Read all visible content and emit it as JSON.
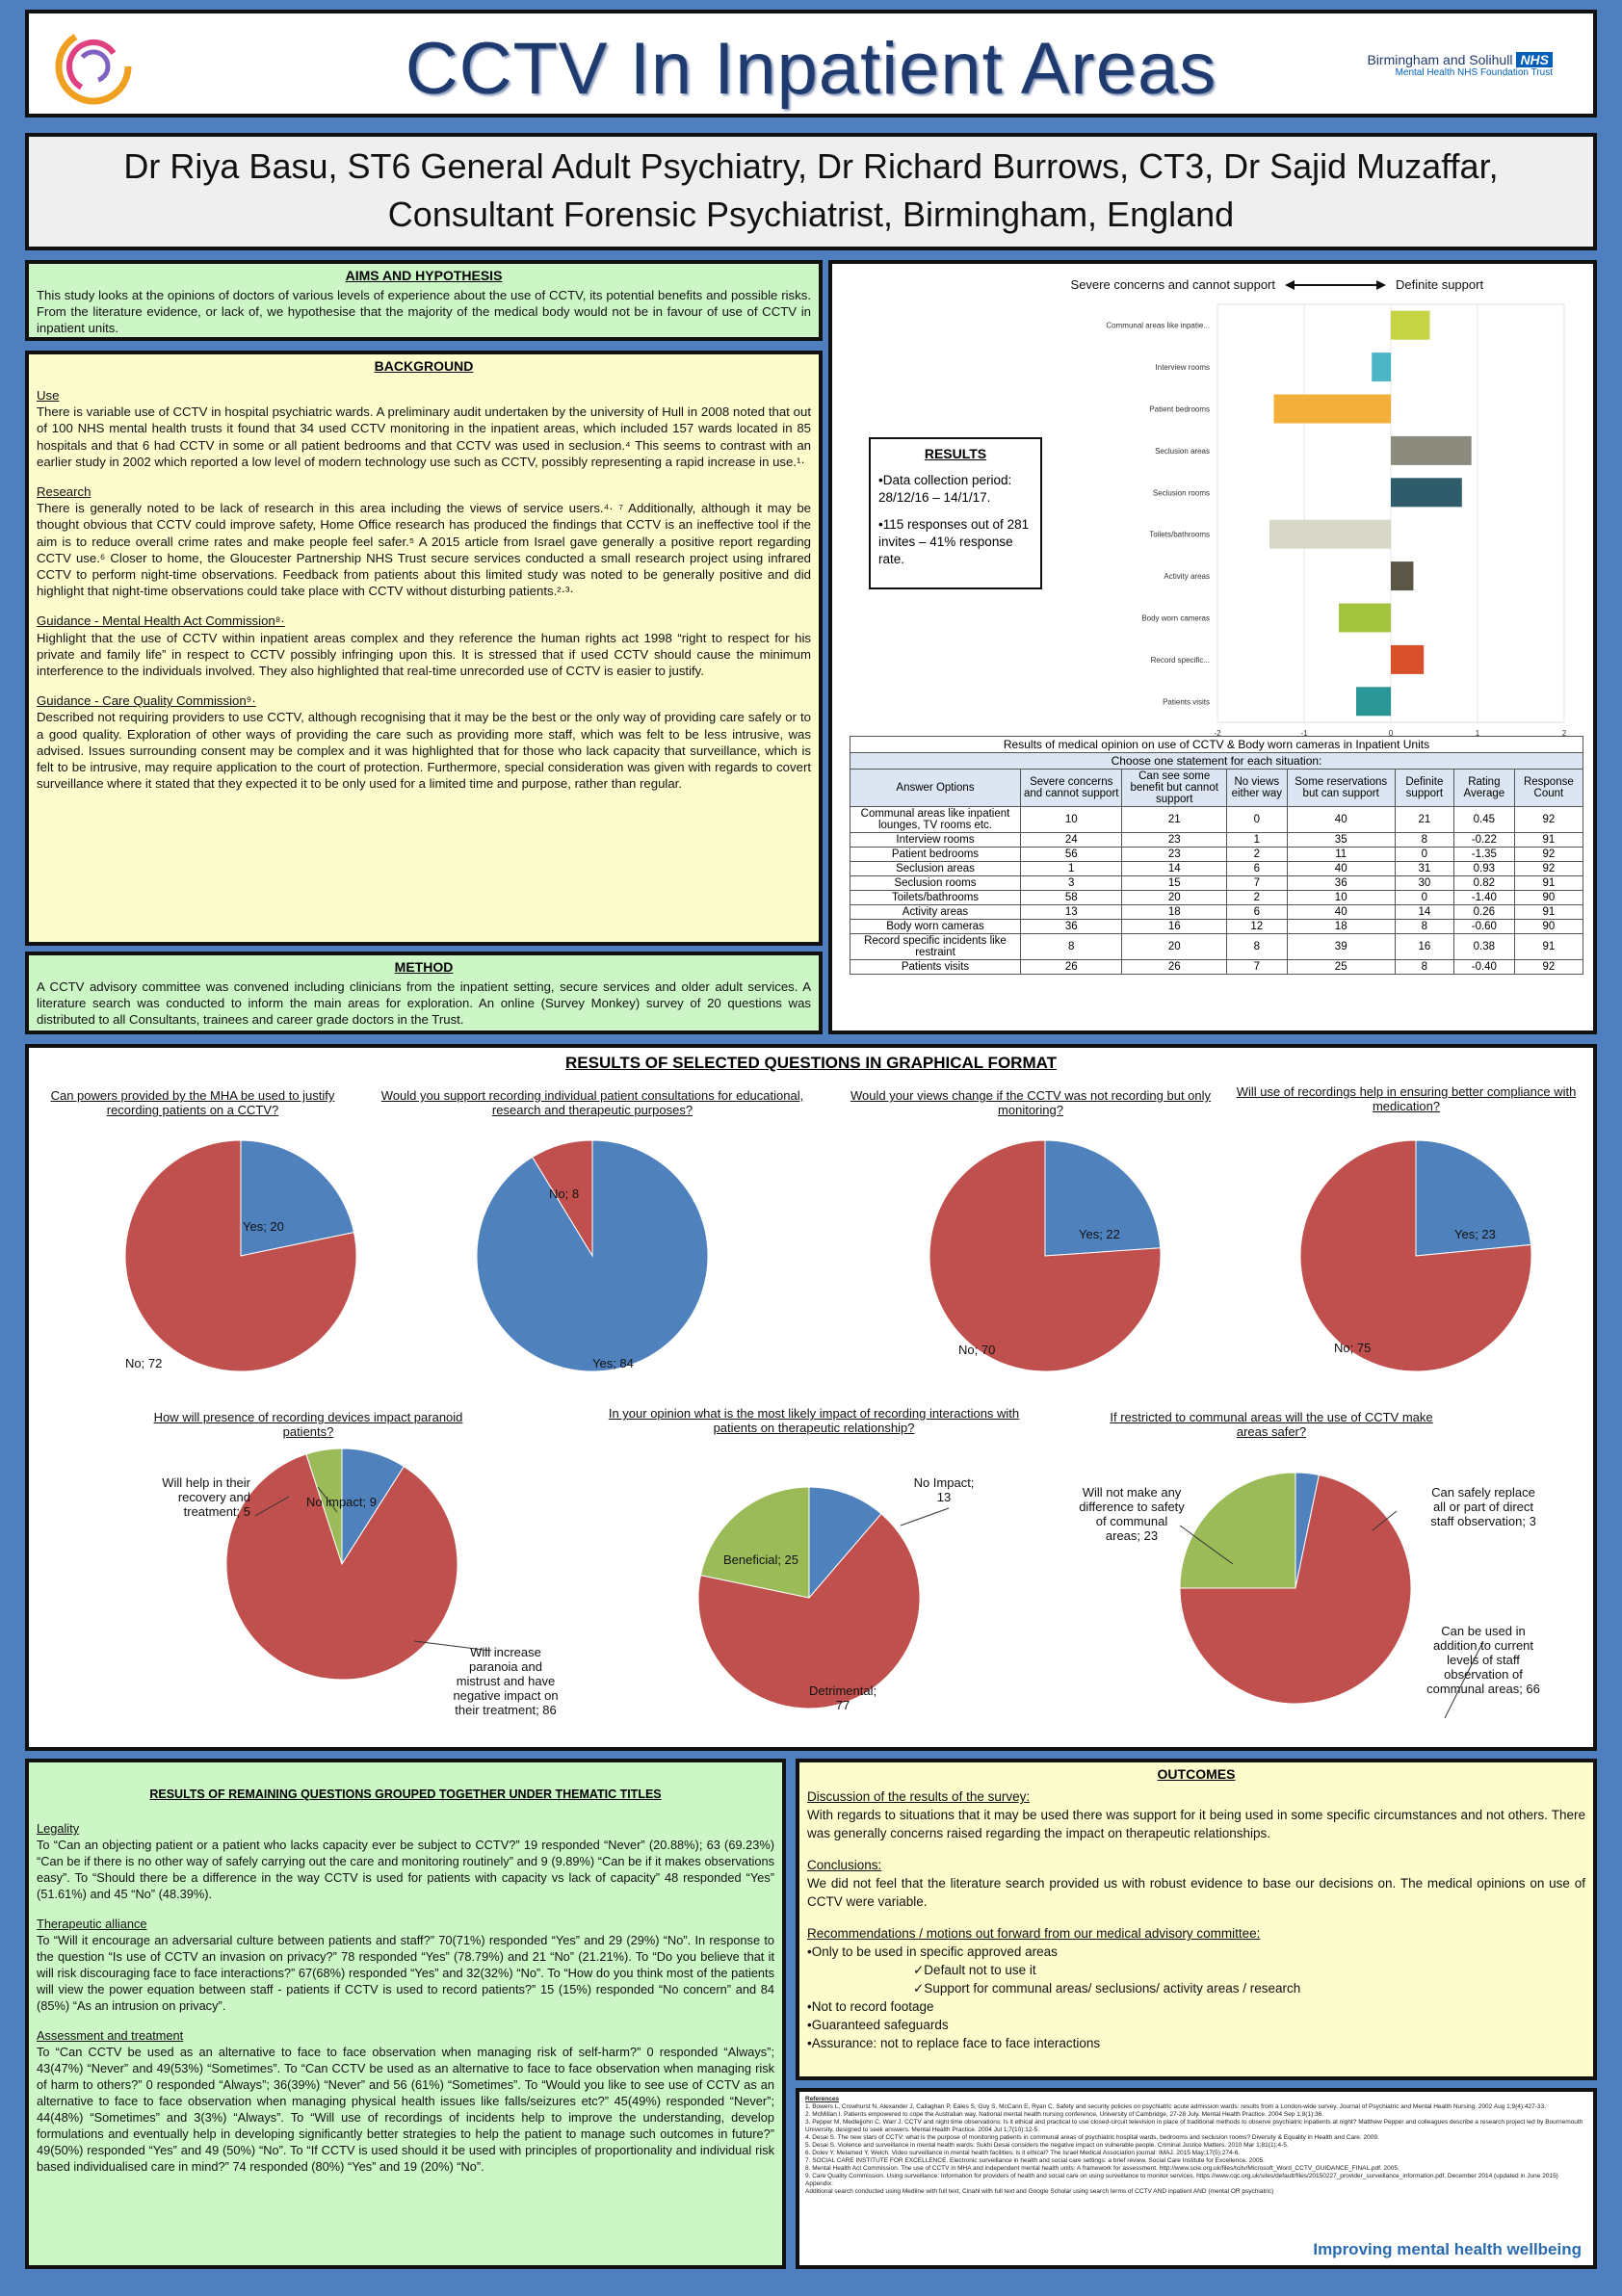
{
  "header": {
    "title": "CCTV In Inpatient Areas",
    "org_name": "Birmingham and Solihull",
    "org_badge": "NHS",
    "org_sub": "Mental Health NHS Foundation Trust"
  },
  "authors": {
    "line1": "Dr Riya Basu, ST6 General Adult Psychiatry, Dr Richard Burrows, CT3, Dr Sajid Muzaffar,",
    "line2": "Consultant Forensic Psychiatrist, Birmingham, England"
  },
  "aims": {
    "heading": "AIMS AND HYPOTHESIS",
    "text": "This study looks at the opinions of doctors of various levels of experience about the use of CCTV, its potential benefits and possible risks. From the literature evidence, or lack of, we hypothesise that the majority of the medical body would not be in favour of use of CCTV in inpatient units."
  },
  "background": {
    "heading": "BACKGROUND",
    "sections": [
      {
        "title": "Use",
        "text": "There is variable use of CCTV in hospital psychiatric wards. A preliminary audit undertaken by the university of Hull in 2008 noted that out of 100 NHS mental health trusts it found that 34 used CCTV monitoring in the inpatient areas, which included 157 wards located in 85 hospitals and that 6 had CCTV in some or all patient bedrooms and that CCTV was used in seclusion.⁴ This seems to contrast with an earlier study in 2002 which reported a low level of modern technology use such as CCTV, possibly representing a rapid increase in use.¹·"
      },
      {
        "title": "Research",
        "text": "There is generally noted to be lack of research in this area including the views of service users.⁴· ⁷ Additionally, although it may be thought obvious that CCTV could improve safety, Home Office research has produced the findings that CCTV is an ineffective tool if the aim is to reduce overall crime rates and make people feel safer.⁵ A 2015 article from Israel gave generally a positive report regarding CCTV use.⁶ Closer to home, the Gloucester Partnership NHS Trust secure services conducted a small research project using infrared CCTV to perform night-time observations. Feedback from patients about this limited study was noted to be generally positive and did highlight that night-time observations could take place with CCTV without disturbing patients.²·³·"
      },
      {
        "title": "Guidance - Mental Health Act Commission⁸·",
        "text": "Highlight that the use of CCTV within inpatient areas complex and they reference the human rights act 1998 “right to respect for his private and family life” in respect to CCTV possibly infringing upon this. It is stressed that if used CCTV should cause the minimum interference to the individuals involved. They also highlighted that real-time unrecorded use of CCTV is easier to justify."
      },
      {
        "title": "Guidance - Care Quality Commission⁹·",
        "text": "Described not requiring providers to use CCTV, although recognising that it may be the best or the only way of providing care safely or to a good quality. Exploration of other ways of providing the care such as providing more staff, which was felt to be less intrusive, was advised. Issues surrounding consent may be complex and it was highlighted that for those who lack capacity that surveillance, which is felt to be intrusive, may require application to the court of protection. Furthermore, special consideration was given with regards to covert surveillance where it stated that they expected it to be only used for a limited time and purpose, rather than regular."
      }
    ]
  },
  "method": {
    "heading": "METHOD",
    "text": "A CCTV advisory committee was convened including clinicians from the inpatient setting, secure services and older adult services. A literature search was conducted to inform the main areas for exploration. An online (Survey Monkey) survey of 20 questions was distributed to all Consultants, trainees and career grade doctors in the Trust."
  },
  "results_box": {
    "heading": "RESULTS",
    "item1": "•Data collection period: 28/12/16 – 14/1/17.",
    "item2": "•115 responses out of 281 invites – 41% response rate."
  },
  "chart_data": [
    {
      "type": "bar",
      "orientation": "horizontal",
      "left_label": "Severe concerns and cannot support",
      "right_label": "Definite support",
      "categories": [
        "Communal areas like inpatie...",
        "Interview rooms",
        "Patient bedrooms",
        "Seclusion areas",
        "Seclusion rooms",
        "Toilets/bathrooms",
        "Activity areas",
        "Body worn cameras",
        "Record specific...",
        "Patients visits"
      ],
      "values": [
        0.45,
        -0.22,
        -1.35,
        0.93,
        0.82,
        -1.4,
        0.26,
        -0.6,
        0.38,
        -0.4
      ],
      "colors": [
        "#c4d444",
        "#4cb6c6",
        "#f2b03a",
        "#8c8c7e",
        "#2f5c6a",
        "#d8d8c8",
        "#5a5648",
        "#a4c440",
        "#d8502a",
        "#2a9696"
      ],
      "xlim": [
        -2,
        2
      ],
      "ticks": [
        "-2",
        "-1",
        "0",
        "1",
        "2"
      ]
    },
    {
      "type": "pie",
      "title": "Can powers provided by the MHA be used to justify recording patients on a CCTV?",
      "labels": [
        "Yes; 20",
        "No; 72"
      ],
      "values": [
        20,
        72
      ]
    },
    {
      "type": "pie",
      "title": "Would you support recording individual patient consultations for educational, research and therapeutic purposes?",
      "labels": [
        "Yes; 84",
        "No; 8"
      ],
      "values": [
        84,
        8
      ]
    },
    {
      "type": "pie",
      "title": "Would your views change if the CCTV was not recording but only monitoring?",
      "labels": [
        "Yes; 22",
        "No; 70"
      ],
      "values": [
        22,
        70
      ]
    },
    {
      "type": "pie",
      "title": "Will use of recordings help in ensuring better compliance with medication?",
      "labels": [
        "Yes; 23",
        "No; 75"
      ],
      "values": [
        23,
        75
      ]
    },
    {
      "type": "pie",
      "title": "How will presence of recording devices impact paranoid patients?",
      "labels": [
        "No impact; 9",
        "Will increase paranoia and mistrust and have negative impact on their treatment; 86",
        "Will help in their recovery and treatment; 5"
      ],
      "values": [
        9,
        86,
        5
      ]
    },
    {
      "type": "pie",
      "title": "In your opinion what is the most likely impact of recording interactions with patients on therapeutic relationship?",
      "labels": [
        "No Impact; 13",
        "Detrimental; 77",
        "Beneficial; 25"
      ],
      "values": [
        13,
        77,
        25
      ]
    },
    {
      "type": "pie",
      "title": "If restricted to communal areas will the use of CCTV make areas safer?",
      "labels": [
        "Can safely replace all or part of direct staff observation; 3",
        "Can be used in addition to current levels of staff observation of communal areas; 66",
        "Will not make any difference to safety of communal areas; 23"
      ],
      "values": [
        3,
        66,
        23
      ]
    }
  ],
  "table": {
    "caption": "Results of medical opinion on use of CCTV & Body worn cameras in Inpatient Units",
    "subcaption": "Choose one statement for each situation:",
    "headers": [
      "Answer Options",
      "Severe concerns and cannot support",
      "Can see some benefit but cannot support",
      "No views either way",
      "Some reservations but can support",
      "Definite support",
      "Rating Average",
      "Response Count"
    ],
    "rows": [
      [
        "Communal areas like inpatient lounges, TV rooms etc.",
        "10",
        "21",
        "0",
        "40",
        "21",
        "0.45",
        "92"
      ],
      [
        "Interview rooms",
        "24",
        "23",
        "1",
        "35",
        "8",
        "-0.22",
        "91"
      ],
      [
        "Patient bedrooms",
        "56",
        "23",
        "2",
        "11",
        "0",
        "-1.35",
        "92"
      ],
      [
        "Seclusion areas",
        "1",
        "14",
        "6",
        "40",
        "31",
        "0.93",
        "92"
      ],
      [
        "Seclusion rooms",
        "3",
        "15",
        "7",
        "36",
        "30",
        "0.82",
        "91"
      ],
      [
        "Toilets/bathrooms",
        "58",
        "20",
        "2",
        "10",
        "0",
        "-1.40",
        "90"
      ],
      [
        "Activity areas",
        "13",
        "18",
        "6",
        "40",
        "14",
        "0.26",
        "91"
      ],
      [
        "Body worn cameras",
        "36",
        "16",
        "12",
        "18",
        "8",
        "-0.60",
        "90"
      ],
      [
        "Record specific incidents like restraint",
        "8",
        "20",
        "8",
        "39",
        "16",
        "0.38",
        "91"
      ],
      [
        "Patients visits",
        "26",
        "26",
        "7",
        "25",
        "8",
        "-0.40",
        "92"
      ]
    ]
  },
  "graph_section": {
    "heading": "RESULTS OF SELECTED QUESTIONS IN GRAPHICAL FORMAT"
  },
  "remaining": {
    "heading": "RESULTS OF REMAINING QUESTIONS GROUPED TOGETHER UNDER THEMATIC TITLES",
    "sections": [
      {
        "title": "Legality",
        "text": "To “Can an objecting patient or a patient who lacks capacity ever be subject to CCTV?” 19 responded “Never” (20.88%); 63 (69.23%) “Can be if there is no other way of safely carrying out the care and monitoring routinely” and 9 (9.89%) “Can be if it makes observations easy”. To “Should there be a difference in the way CCTV is used for patients with capacity vs lack of capacity” 48 responded “Yes” (51.61%) and 45 “No” (48.39%)."
      },
      {
        "title": "Therapeutic alliance",
        "text": "To “Will it encourage an adversarial culture between patients and staff?” 70(71%) responded “Yes” and 29 (29%) “No”. In response to the question “Is use of CCTV an invasion on privacy?” 78 responded “Yes” (78.79%) and 21 “No” (21.21%). To “Do you believe that it will risk discouraging face to face interactions?” 67(68%) responded “Yes” and 32(32%) “No”. To “How do you think most of the patients will view the power equation between staff - patients if CCTV is used to record patients?” 15 (15%) responded “No concern” and 84 (85%) “As an intrusion on privacy”."
      },
      {
        "title": "Assessment and treatment",
        "text": "To “Can CCTV be used as an alternative to face to face observation when managing risk of self-harm?” 0 responded “Always”; 43(47%) “Never” and 49(53%) “Sometimes”. To “Can CCTV be used as an alternative to face to face observation when managing risk of harm to others?” 0 responded “Always”; 36(39%) “Never” and 56 (61%) “Sometimes”. To “Would you like to see use of CCTV as an alternative to face to face observation when managing physical health issues like falls/seizures etc?” 45(49%) responded “Never”; 44(48%) “Sometimes” and 3(3%) “Always”. To “Will use of recordings of incidents help to improve the understanding, develop formulations and eventually help in developing significantly better strategies to help the patient to manage such outcomes in future?” 49(50%) responded “Yes” and 49 (50%) “No”. To “If CCTV is used should it be used with principles of proportionality and individual risk based individualised care in mind?” 74 responded (80%) “Yes” and 19 (20%) “No”."
      }
    ]
  },
  "outcomes": {
    "heading": "OUTCOMES",
    "discussion_title": "Discussion of the results of the survey:",
    "discussion": "With regards to situations that it may be used there was support for it being used in some specific circumstances and not others. There was generally concerns raised regarding the impact on therapeutic relationships.",
    "conclusions_title": "Conclusions:",
    "conclusions": "We did not feel that the literature search provided us with robust evidence to base our decisions on. The medical opinions on use of CCTV were variable.",
    "rec_title": "Recommendations / motions out forward from our medical advisory committee:",
    "rec1": "•Only to be used in specific approved areas",
    "rec1a": "✓Default not to use it",
    "rec1b": "✓Support for communal areas/ seclusions/ activity areas / research",
    "rec2": "•Not to record footage",
    "rec3": "•Guaranteed safeguards",
    "rec4": "•Assurance: not to replace face to face interactions"
  },
  "references": {
    "heading": "References",
    "lines": [
      "1. Bowers L, Crowhurst N, Alexander J, Callaghan P, Eales S, Guy S, McCann E, Ryan C. Safety and security policies on psychiatric acute admission wards: results from a London-wide survey. Journal of Psychiatric and Mental Health Nursing. 2002 Aug 1;9(4):427-33.",
      "2. McMillan I. Patients empowered to cope the Australian way. National mental health nursing conference, University of Cambridge, 27-28 July. Mental Health Practice. 2004 Sep 1;8(1):36.",
      "3. Pepper M, Medlejjohn C, Warr J. CCTV and night time observations: Is it ethical and practical to use closed-circuit television in place of traditional methods to observe psychiatric inpatients at night? Matthew Pepper and colleagues describe a research project led by Bournemouth University, designed to seek answers. Mental Health Practice. 2004 Jul 1;7(10):12-5.",
      "4. Desai S. The new stars of CCTV: what is the purpose of monitoring patients in communal areas of psychiatric hospital wards, bedrooms and seclusion rooms? Diversity & Equality in Health and Care. 2009.",
      "5. Desai S. Violence and surveillance in mental health wards: Sukhi Desai considers the negative impact on vulnerable people. Criminal Justice Matters. 2010 Mar 1;81(1):4-5.",
      "6. Dolev Y, Melamed Y, Welch. Video surveillance in mental health facilities: is it ethical? The Israel Medical Association journal: IMAJ. 2015 May;17(5):274-6.",
      "7. SOCIAL CARE INSTITUTE FOR EXCELLENCE. Electronic surveillance in health and social care settings: a brief review. Social Care Institute for Excellence. 2005.",
      "8. Mental Health Act Commission. The use of CCTV in MHA and independent mental health units: A framework for assessment. http://www.scie.org.uk/files/tcitv/Microsoft_Word_CCTV_GUIDANCE_FINAL.pdf. 2005.",
      "9. Care Quality Commission. Using surveillance: Information for providers of health and social care on using surveillance to monitor services. https://www.cqc.org.uk/sites/default/files/20150227_provider_surveillance_information.pdf. December 2014 (updated in June 2015)",
      "Appendix:",
      "Additional search conducted using Medline with full text, Cinahl with full text and Google Scholar using search terms of CCTV AND inpatient AND (mental OR psychiatric)"
    ],
    "footer": "Improving mental health wellbeing"
  }
}
